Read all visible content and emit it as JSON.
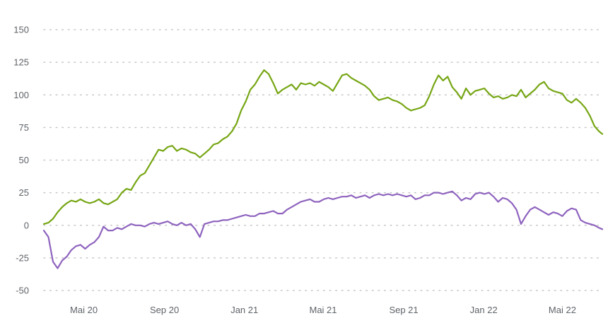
{
  "chart_data": {
    "type": "line",
    "title": "",
    "xlabel": "",
    "ylabel": "",
    "ylim": [
      -50,
      150
    ],
    "y_ticks": [
      150,
      125,
      100,
      75,
      50,
      25,
      0,
      -25,
      -50
    ],
    "y_tick_labels": [
      "150",
      "125",
      "100",
      "75",
      "50",
      "25",
      "0",
      "-25",
      "-50"
    ],
    "x_range": [
      "2020-03-01",
      "2022-07-01"
    ],
    "x_ticks": [
      {
        "date": "2020-05-01",
        "label": "Mai 20"
      },
      {
        "date": "2020-09-01",
        "label": "Sep 20"
      },
      {
        "date": "2021-01-01",
        "label": "Jan 21"
      },
      {
        "date": "2021-05-01",
        "label": "Mai 21"
      },
      {
        "date": "2021-09-01",
        "label": "Sep 21"
      },
      {
        "date": "2022-01-01",
        "label": "Jan 22"
      },
      {
        "date": "2022-05-01",
        "label": "Mai 22"
      }
    ],
    "grid": true,
    "legend": "none",
    "series": [
      {
        "color": "#76a614",
        "points": [
          [
            "2020-03-01",
            1
          ],
          [
            "2020-03-08",
            2
          ],
          [
            "2020-03-15",
            5
          ],
          [
            "2020-03-22",
            10
          ],
          [
            "2020-03-29",
            14
          ],
          [
            "2020-04-05",
            17
          ],
          [
            "2020-04-12",
            19
          ],
          [
            "2020-04-19",
            18
          ],
          [
            "2020-04-26",
            20
          ],
          [
            "2020-05-03",
            18
          ],
          [
            "2020-05-10",
            17
          ],
          [
            "2020-05-17",
            18
          ],
          [
            "2020-05-24",
            20
          ],
          [
            "2020-05-31",
            17
          ],
          [
            "2020-06-07",
            16
          ],
          [
            "2020-06-14",
            18
          ],
          [
            "2020-06-21",
            20
          ],
          [
            "2020-06-28",
            25
          ],
          [
            "2020-07-05",
            28
          ],
          [
            "2020-07-12",
            27
          ],
          [
            "2020-07-19",
            33
          ],
          [
            "2020-07-26",
            38
          ],
          [
            "2020-08-02",
            40
          ],
          [
            "2020-08-09",
            46
          ],
          [
            "2020-08-16",
            52
          ],
          [
            "2020-08-23",
            58
          ],
          [
            "2020-08-30",
            57
          ],
          [
            "2020-09-06",
            60
          ],
          [
            "2020-09-13",
            61
          ],
          [
            "2020-09-20",
            57
          ],
          [
            "2020-09-27",
            59
          ],
          [
            "2020-10-04",
            58
          ],
          [
            "2020-10-11",
            56
          ],
          [
            "2020-10-18",
            55
          ],
          [
            "2020-10-25",
            52
          ],
          [
            "2020-11-01",
            55
          ],
          [
            "2020-11-08",
            58
          ],
          [
            "2020-11-15",
            62
          ],
          [
            "2020-11-22",
            63
          ],
          [
            "2020-11-29",
            66
          ],
          [
            "2020-12-06",
            68
          ],
          [
            "2020-12-13",
            72
          ],
          [
            "2020-12-20",
            78
          ],
          [
            "2020-12-27",
            88
          ],
          [
            "2021-01-03",
            95
          ],
          [
            "2021-01-10",
            104
          ],
          [
            "2021-01-17",
            108
          ],
          [
            "2021-01-24",
            114
          ],
          [
            "2021-01-31",
            119
          ],
          [
            "2021-02-07",
            116
          ],
          [
            "2021-02-14",
            109
          ],
          [
            "2021-02-21",
            101
          ],
          [
            "2021-02-28",
            104
          ],
          [
            "2021-03-07",
            106
          ],
          [
            "2021-03-14",
            108
          ],
          [
            "2021-03-21",
            104
          ],
          [
            "2021-03-28",
            109
          ],
          [
            "2021-04-04",
            108
          ],
          [
            "2021-04-11",
            109
          ],
          [
            "2021-04-18",
            107
          ],
          [
            "2021-04-25",
            110
          ],
          [
            "2021-05-02",
            108
          ],
          [
            "2021-05-09",
            106
          ],
          [
            "2021-05-16",
            103
          ],
          [
            "2021-05-23",
            109
          ],
          [
            "2021-05-30",
            115
          ],
          [
            "2021-06-06",
            116
          ],
          [
            "2021-06-13",
            113
          ],
          [
            "2021-06-20",
            111
          ],
          [
            "2021-06-27",
            109
          ],
          [
            "2021-07-04",
            107
          ],
          [
            "2021-07-11",
            104
          ],
          [
            "2021-07-18",
            99
          ],
          [
            "2021-07-25",
            96
          ],
          [
            "2021-08-01",
            97
          ],
          [
            "2021-08-08",
            98
          ],
          [
            "2021-08-15",
            96
          ],
          [
            "2021-08-22",
            95
          ],
          [
            "2021-08-29",
            93
          ],
          [
            "2021-09-05",
            90
          ],
          [
            "2021-09-12",
            88
          ],
          [
            "2021-09-19",
            89
          ],
          [
            "2021-09-26",
            90
          ],
          [
            "2021-10-03",
            92
          ],
          [
            "2021-10-10",
            99
          ],
          [
            "2021-10-17",
            108
          ],
          [
            "2021-10-24",
            115
          ],
          [
            "2021-10-31",
            111
          ],
          [
            "2021-11-07",
            114
          ],
          [
            "2021-11-14",
            106
          ],
          [
            "2021-11-21",
            102
          ],
          [
            "2021-11-28",
            97
          ],
          [
            "2021-12-05",
            105
          ],
          [
            "2021-12-12",
            100
          ],
          [
            "2021-12-19",
            103
          ],
          [
            "2021-12-26",
            104
          ],
          [
            "2022-01-02",
            105
          ],
          [
            "2022-01-09",
            101
          ],
          [
            "2022-01-16",
            98
          ],
          [
            "2022-01-23",
            99
          ],
          [
            "2022-01-30",
            97
          ],
          [
            "2022-02-06",
            98
          ],
          [
            "2022-02-13",
            100
          ],
          [
            "2022-02-20",
            99
          ],
          [
            "2022-02-27",
            104
          ],
          [
            "2022-03-06",
            98
          ],
          [
            "2022-03-13",
            101
          ],
          [
            "2022-03-20",
            104
          ],
          [
            "2022-03-27",
            108
          ],
          [
            "2022-04-03",
            110
          ],
          [
            "2022-04-10",
            105
          ],
          [
            "2022-04-17",
            103
          ],
          [
            "2022-04-24",
            102
          ],
          [
            "2022-05-01",
            101
          ],
          [
            "2022-05-08",
            96
          ],
          [
            "2022-05-15",
            94
          ],
          [
            "2022-05-22",
            97
          ],
          [
            "2022-05-29",
            94
          ],
          [
            "2022-06-05",
            90
          ],
          [
            "2022-06-12",
            84
          ],
          [
            "2022-06-19",
            76
          ],
          [
            "2022-06-26",
            72
          ],
          [
            "2022-07-01",
            70
          ]
        ]
      },
      {
        "color": "#8e63be",
        "points": [
          [
            "2020-03-01",
            -4
          ],
          [
            "2020-03-08",
            -9
          ],
          [
            "2020-03-15",
            -28
          ],
          [
            "2020-03-22",
            -33
          ],
          [
            "2020-03-29",
            -27
          ],
          [
            "2020-04-05",
            -24
          ],
          [
            "2020-04-12",
            -19
          ],
          [
            "2020-04-19",
            -16
          ],
          [
            "2020-04-26",
            -15
          ],
          [
            "2020-05-03",
            -18
          ],
          [
            "2020-05-10",
            -15
          ],
          [
            "2020-05-17",
            -13
          ],
          [
            "2020-05-24",
            -9
          ],
          [
            "2020-05-31",
            -1
          ],
          [
            "2020-06-07",
            -4
          ],
          [
            "2020-06-14",
            -4
          ],
          [
            "2020-06-21",
            -2
          ],
          [
            "2020-06-28",
            -3
          ],
          [
            "2020-07-05",
            -1
          ],
          [
            "2020-07-12",
            1
          ],
          [
            "2020-07-19",
            0
          ],
          [
            "2020-07-26",
            0
          ],
          [
            "2020-08-02",
            -1
          ],
          [
            "2020-08-09",
            1
          ],
          [
            "2020-08-16",
            2
          ],
          [
            "2020-08-23",
            1
          ],
          [
            "2020-08-30",
            2
          ],
          [
            "2020-09-06",
            3
          ],
          [
            "2020-09-13",
            1
          ],
          [
            "2020-09-20",
            0
          ],
          [
            "2020-09-27",
            2
          ],
          [
            "2020-10-04",
            0
          ],
          [
            "2020-10-11",
            1
          ],
          [
            "2020-10-18",
            -3
          ],
          [
            "2020-10-25",
            -9
          ],
          [
            "2020-11-01",
            1
          ],
          [
            "2020-11-08",
            2
          ],
          [
            "2020-11-15",
            3
          ],
          [
            "2020-11-22",
            3
          ],
          [
            "2020-11-29",
            4
          ],
          [
            "2020-12-06",
            4
          ],
          [
            "2020-12-13",
            5
          ],
          [
            "2020-12-20",
            6
          ],
          [
            "2020-12-27",
            7
          ],
          [
            "2021-01-03",
            8
          ],
          [
            "2021-01-10",
            7
          ],
          [
            "2021-01-17",
            7
          ],
          [
            "2021-01-24",
            9
          ],
          [
            "2021-01-31",
            9
          ],
          [
            "2021-02-07",
            10
          ],
          [
            "2021-02-14",
            11
          ],
          [
            "2021-02-21",
            9
          ],
          [
            "2021-02-28",
            9
          ],
          [
            "2021-03-07",
            12
          ],
          [
            "2021-03-14",
            14
          ],
          [
            "2021-03-21",
            16
          ],
          [
            "2021-03-28",
            18
          ],
          [
            "2021-04-04",
            19
          ],
          [
            "2021-04-11",
            20
          ],
          [
            "2021-04-18",
            18
          ],
          [
            "2021-04-25",
            18
          ],
          [
            "2021-05-02",
            20
          ],
          [
            "2021-05-09",
            21
          ],
          [
            "2021-05-16",
            20
          ],
          [
            "2021-05-23",
            21
          ],
          [
            "2021-05-30",
            22
          ],
          [
            "2021-06-06",
            22
          ],
          [
            "2021-06-13",
            23
          ],
          [
            "2021-06-20",
            21
          ],
          [
            "2021-06-27",
            22
          ],
          [
            "2021-07-04",
            23
          ],
          [
            "2021-07-11",
            21
          ],
          [
            "2021-07-18",
            23
          ],
          [
            "2021-07-25",
            24
          ],
          [
            "2021-08-01",
            23
          ],
          [
            "2021-08-08",
            24
          ],
          [
            "2021-08-15",
            23
          ],
          [
            "2021-08-22",
            24
          ],
          [
            "2021-08-29",
            23
          ],
          [
            "2021-09-05",
            22
          ],
          [
            "2021-09-12",
            23
          ],
          [
            "2021-09-19",
            20
          ],
          [
            "2021-09-26",
            21
          ],
          [
            "2021-10-03",
            23
          ],
          [
            "2021-10-10",
            23
          ],
          [
            "2021-10-17",
            25
          ],
          [
            "2021-10-24",
            25
          ],
          [
            "2021-10-31",
            24
          ],
          [
            "2021-11-07",
            25
          ],
          [
            "2021-11-14",
            26
          ],
          [
            "2021-11-21",
            23
          ],
          [
            "2021-11-28",
            19
          ],
          [
            "2021-12-05",
            21
          ],
          [
            "2021-12-12",
            20
          ],
          [
            "2021-12-19",
            24
          ],
          [
            "2021-12-26",
            25
          ],
          [
            "2022-01-02",
            24
          ],
          [
            "2022-01-09",
            25
          ],
          [
            "2022-01-16",
            22
          ],
          [
            "2022-01-23",
            18
          ],
          [
            "2022-01-30",
            21
          ],
          [
            "2022-02-06",
            20
          ],
          [
            "2022-02-13",
            17
          ],
          [
            "2022-02-20",
            12
          ],
          [
            "2022-02-27",
            1
          ],
          [
            "2022-03-06",
            7
          ],
          [
            "2022-03-13",
            12
          ],
          [
            "2022-03-20",
            14
          ],
          [
            "2022-03-27",
            12
          ],
          [
            "2022-04-03",
            10
          ],
          [
            "2022-04-10",
            8
          ],
          [
            "2022-04-17",
            10
          ],
          [
            "2022-04-24",
            9
          ],
          [
            "2022-05-01",
            7
          ],
          [
            "2022-05-08",
            11
          ],
          [
            "2022-05-15",
            13
          ],
          [
            "2022-05-22",
            12
          ],
          [
            "2022-05-29",
            4
          ],
          [
            "2022-06-05",
            2
          ],
          [
            "2022-06-12",
            1
          ],
          [
            "2022-06-19",
            0
          ],
          [
            "2022-06-26",
            -2
          ],
          [
            "2022-07-01",
            -3
          ]
        ]
      }
    ]
  }
}
